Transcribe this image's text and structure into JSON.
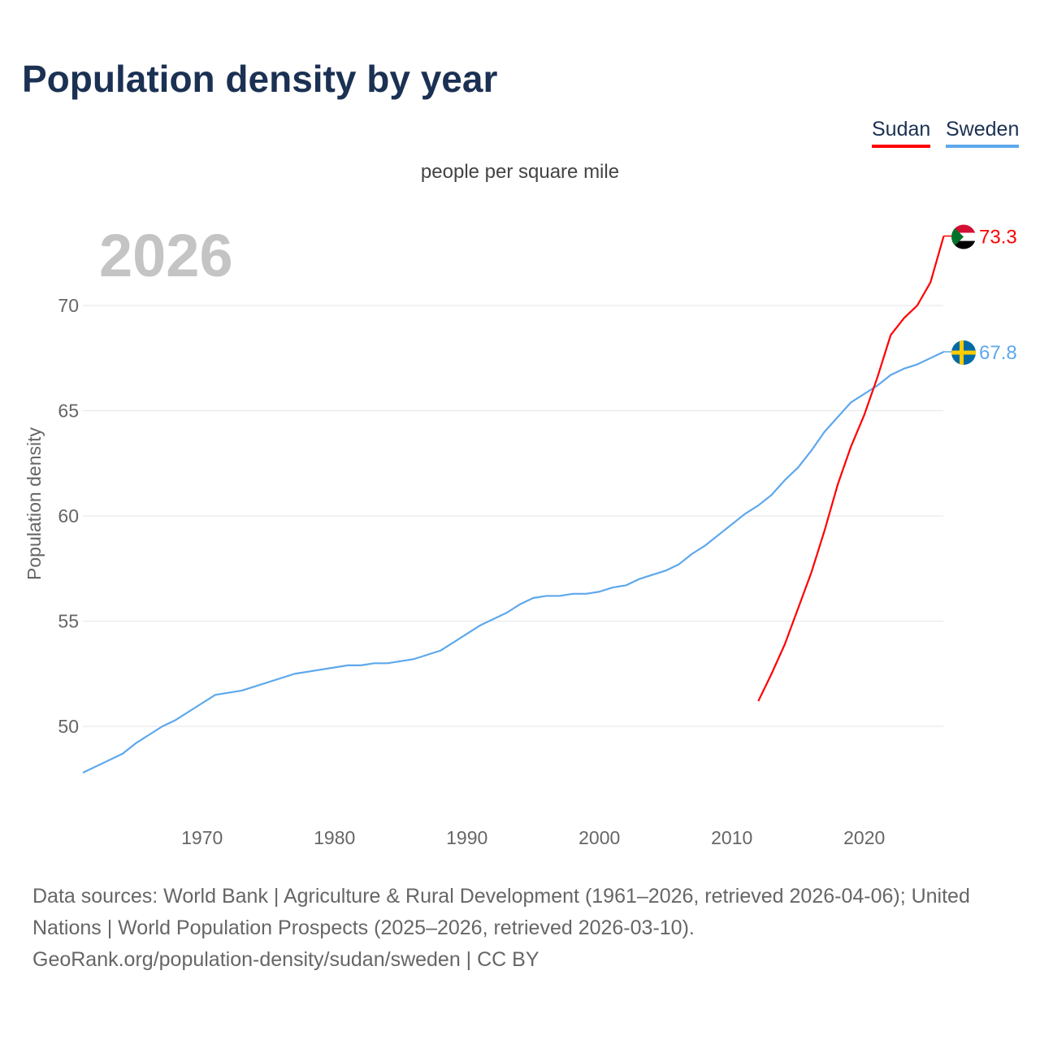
{
  "title": "Population density by year",
  "legend": [
    {
      "name": "Sudan",
      "color": "#ff0000"
    },
    {
      "name": "Sweden",
      "color": "#5ea8ec"
    }
  ],
  "subtitle": "people per square mile",
  "footer": {
    "line1": "Data sources: World Bank | Agriculture & Rural Development (1961–2026, retrieved 2026-04-06); United Nations | World Population Prospects (2025–2026, retrieved 2026-03-10).",
    "line2": "GeoRank.org/population-density/sudan/sweden | CC BY"
  },
  "chart_data": {
    "type": "line",
    "title": "Population density by year",
    "ylabel": "Population density",
    "xlabel": "",
    "year_label": "2026",
    "xlim": [
      1961,
      2026
    ],
    "ylim": [
      46.5,
      74
    ],
    "xticks": [
      1970,
      1980,
      1990,
      2000,
      2010,
      2020
    ],
    "yticks": [
      50,
      55,
      60,
      65,
      70
    ],
    "grid": true,
    "series": [
      {
        "name": "Sweden",
        "color": "#5ea8ec",
        "end_label": "67.8",
        "x": [
          1961,
          1964,
          1965,
          1967,
          1968,
          1971,
          1973,
          1977,
          1981,
          1982,
          1983,
          1984,
          1986,
          1988,
          1991,
          1993,
          1994,
          1995,
          1996,
          1997,
          1998,
          1999,
          2000,
          2001,
          2002,
          2003,
          2005,
          2006,
          2007,
          2008,
          2011,
          2012,
          2013,
          2014,
          2015,
          2016,
          2017,
          2019,
          2021,
          2022,
          2023,
          2024,
          2026
        ],
        "y": [
          47.8,
          48.7,
          49.2,
          50.0,
          50.3,
          51.5,
          51.7,
          52.5,
          52.9,
          52.9,
          53.0,
          53.0,
          53.2,
          53.6,
          54.8,
          55.4,
          55.8,
          56.1,
          56.2,
          56.2,
          56.3,
          56.3,
          56.4,
          56.6,
          56.7,
          57.0,
          57.4,
          57.7,
          58.2,
          58.6,
          60.1,
          60.5,
          61.0,
          61.7,
          62.3,
          63.1,
          64.0,
          65.4,
          66.2,
          66.7,
          67.0,
          67.2,
          67.8
        ]
      },
      {
        "name": "Sudan",
        "color": "#ff0000",
        "end_label": "73.3",
        "x": [
          2012,
          2013,
          2014,
          2015,
          2016,
          2017,
          2018,
          2019,
          2020,
          2021,
          2022,
          2023,
          2024,
          2025,
          2026
        ],
        "y": [
          51.2,
          52.5,
          53.9,
          55.6,
          57.3,
          59.3,
          61.5,
          63.3,
          64.8,
          66.6,
          68.6,
          69.4,
          70.0,
          71.1,
          73.3
        ]
      }
    ]
  }
}
